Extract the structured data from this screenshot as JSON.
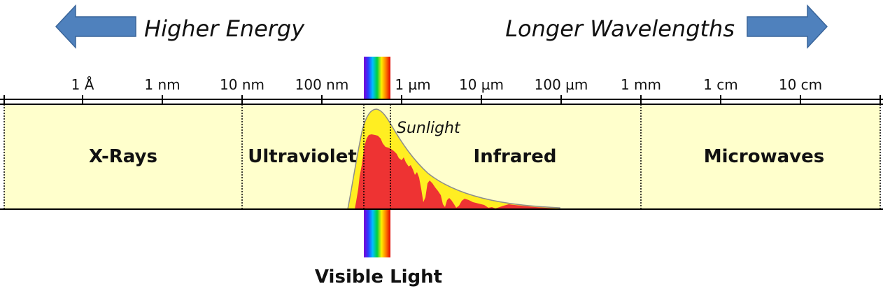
{
  "header": {
    "left_label": "Higher Energy",
    "right_label": "Longer Wavelengths",
    "arrow_color": "#4f81bd"
  },
  "scale": {
    "ticks": [
      "1 Å",
      "1 nm",
      "10 nm",
      "100 nm",
      "1 µm",
      "10 µm",
      "100 µm",
      "1 mm",
      "1 cm",
      "10 cm"
    ]
  },
  "bands": {
    "xrays": "X-Rays",
    "ultraviolet": "Ultraviolet",
    "infrared": "Infrared",
    "microwaves": "Microwaves",
    "band_color": "#ffffcc"
  },
  "sunlight": {
    "label": "Sunlight",
    "outer_color": "#ffee22",
    "inner_color": "#ee3333"
  },
  "visible": {
    "label": "Visible Light",
    "spectrum_colors": [
      "#7a00d6",
      "#2a3cff",
      "#00c0ff",
      "#00d040",
      "#ffee00",
      "#ff7a00",
      "#e00000"
    ]
  }
}
